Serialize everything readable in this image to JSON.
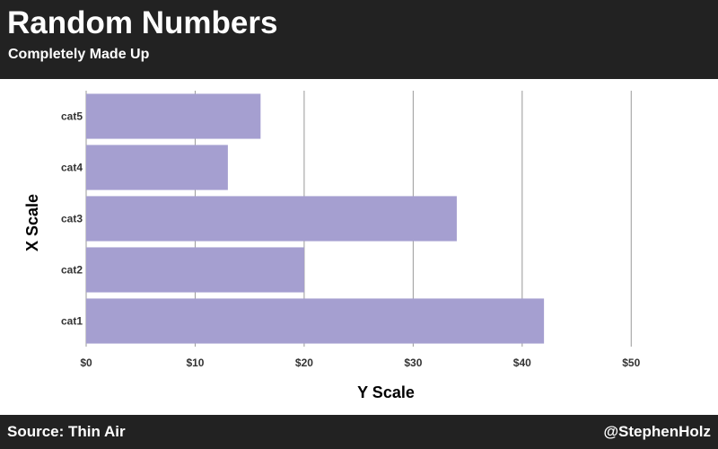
{
  "header": {
    "title": "Random Numbers",
    "subtitle": "Completely Made Up"
  },
  "footer": {
    "source": "Source: Thin Air",
    "credit": "@StephenHolz"
  },
  "chart_data": {
    "type": "bar",
    "orientation": "horizontal",
    "categories": [
      "cat1",
      "cat2",
      "cat3",
      "cat4",
      "cat5"
    ],
    "values": [
      42,
      20,
      34,
      13,
      16
    ],
    "xlabel": "Y Scale",
    "ylabel": "X Scale",
    "xlim": [
      0,
      55
    ],
    "x_ticks": [
      0,
      10,
      20,
      30,
      40,
      50
    ],
    "x_tick_labels": [
      "$0",
      "$10",
      "$20",
      "$30",
      "$40",
      "$50"
    ],
    "grid": "vertical",
    "bar_color": "#a59fd0"
  }
}
